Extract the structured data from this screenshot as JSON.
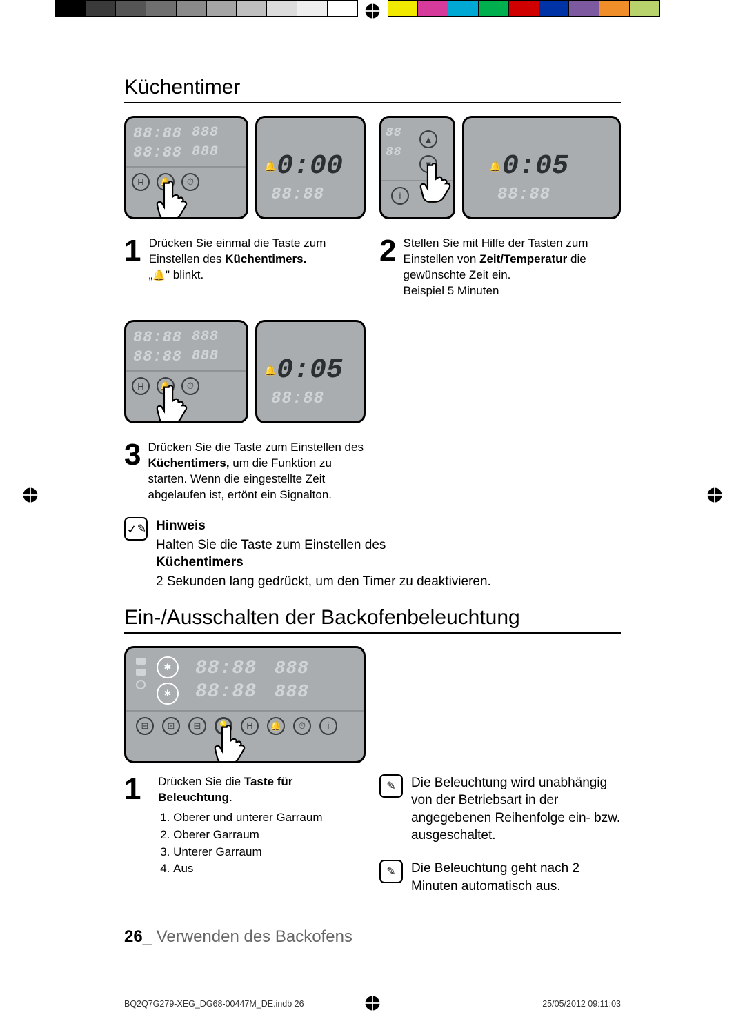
{
  "colorbar_colors": [
    "#000000",
    "#3a3a3a",
    "#555555",
    "#6f6f6f",
    "#8a8a8a",
    "#a5a5a5",
    "#bfbfbf",
    "#dcdcdc",
    "#eeeeee",
    "#ffffff",
    "",
    "#f1e900",
    "#d63a9a",
    "#00a9d4",
    "#00b04f",
    "#d00000",
    "#0033a6",
    "#7d5aa0",
    "#f08f2a",
    "#b8d36b",
    ""
  ],
  "h1": "Küchentimer",
  "h2": "Ein-/Ausschalten der Backofenbeleuchtung",
  "panels": {
    "dim_time": "88:88",
    "dim_temp": "888",
    "r1_right": "0:00",
    "r2_right": "0:05",
    "r3_right": "0:05"
  },
  "step1": {
    "num": "1",
    "a": "Drücken Sie einmal die Taste zum Einstellen des ",
    "b": "Küchentimers.",
    "c": "„🔔\" blinkt."
  },
  "step2": {
    "num": "2",
    "a": "Stellen Sie mit Hilfe der Tasten zum Einstellen von ",
    "b": "Zeit/Temperatur",
    "c": " die gewünschte Zeit ein.",
    "d": "Beispiel   5 Minuten"
  },
  "step3": {
    "num": "3",
    "a": "Drücken Sie die Taste zum Einstellen des ",
    "b": "Küchentimers,",
    "c": " um die Funktion zu starten. Wenn die eingestellte Zeit abgelaufen ist, ertönt ein Signalton."
  },
  "note1": {
    "label": "Hinweis",
    "a": "Halten Sie die Taste zum Einstellen des ",
    "b": "Küchentimers",
    "c": " 2 Sekunden lang gedrückt, um den Timer zu deaktivieren."
  },
  "light_step": {
    "num": "1",
    "intro_a": "Drücken Sie die ",
    "intro_b": "Taste für Beleuchtung",
    "items": [
      "Oberer und unterer Garraum",
      "Oberer Garraum",
      "Unterer Garraum",
      "Aus"
    ]
  },
  "light_note2": "Die Beleuchtung wird unabhängig von der Betriebsart in der angegebenen Reihenfolge ein- bzw. ausgeschaltet.",
  "light_note3": "Die Beleuchtung geht nach 2 Minuten automatisch aus.",
  "footer": {
    "page": "26",
    "sep": "_ ",
    "section": "Verwenden des Backofens"
  },
  "microL": "BQ2Q7G279-XEG_DG68-00447M_DE.indb   26",
  "microR": "25/05/2012   09:11:03"
}
